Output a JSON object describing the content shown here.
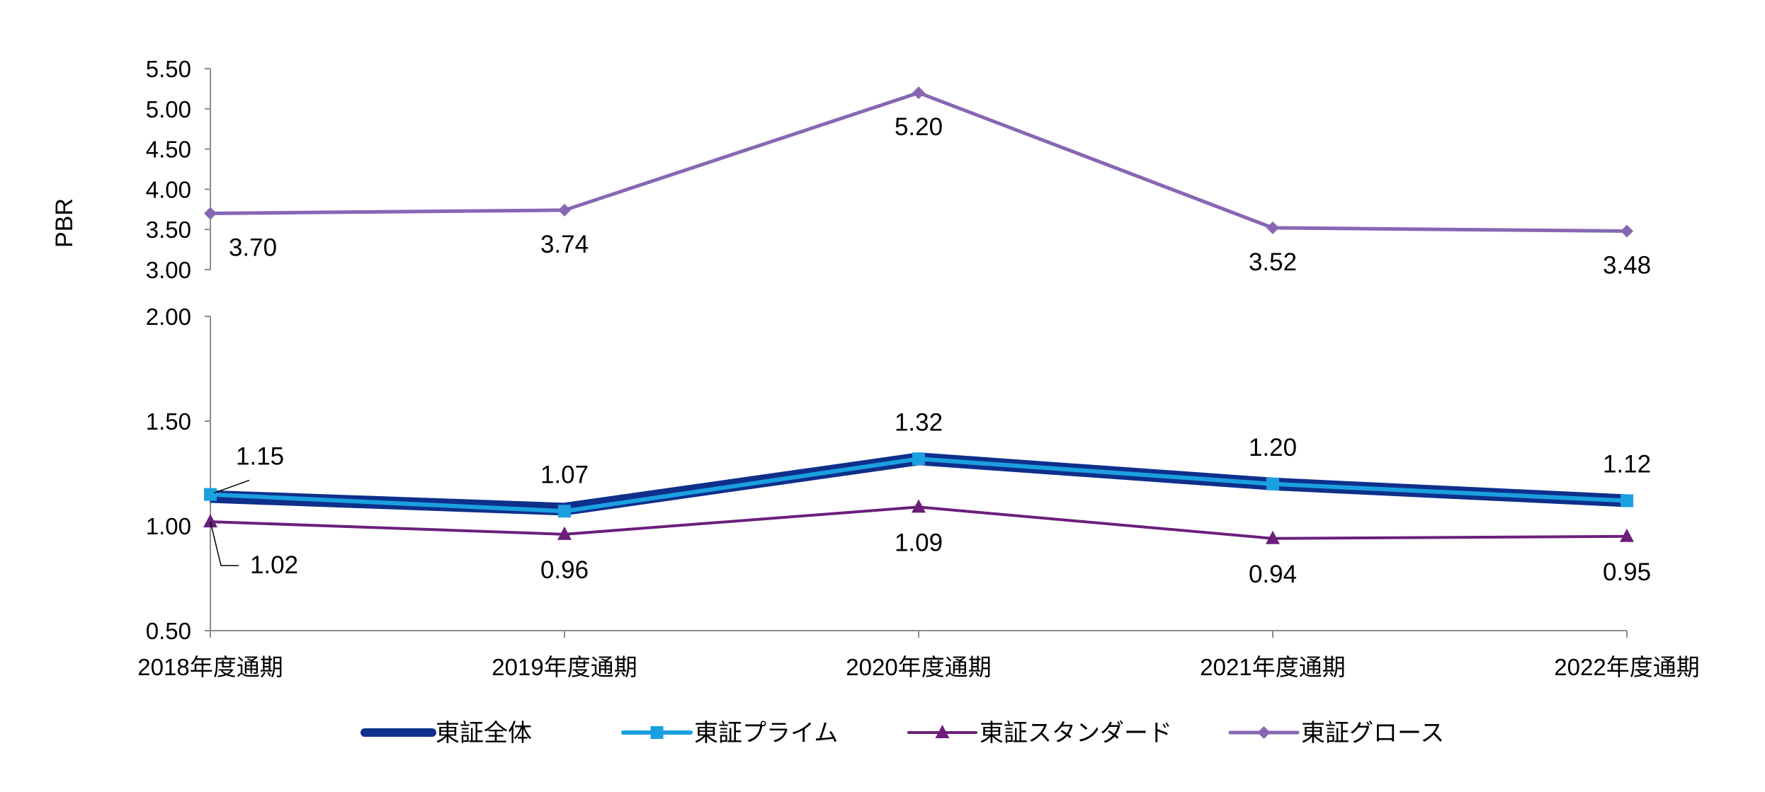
{
  "chart_data": {
    "type": "line",
    "ylabel": "PBR",
    "categories": [
      "2018年度通期",
      "2019年度通期",
      "2020年度通期",
      "2021年度通期",
      "2022年度通期"
    ],
    "axes": {
      "upper": {
        "ylim": [
          3.0,
          5.5
        ],
        "ticks": [
          "3.00",
          "3.50",
          "4.00",
          "4.50",
          "5.00",
          "5.50"
        ]
      },
      "lower": {
        "ylim": [
          0.5,
          2.0
        ],
        "ticks": [
          "0.50",
          "1.00",
          "1.50",
          "2.00"
        ]
      }
    },
    "grid": false,
    "legend_position": "bottom",
    "series": [
      {
        "name": "東証全体",
        "axis": "lower",
        "values": [
          1.14,
          1.08,
          1.32,
          1.2,
          1.12
        ],
        "color": "#0e2f8a",
        "marker": "none"
      },
      {
        "name": "東証プライム",
        "axis": "lower",
        "values": [
          1.15,
          1.07,
          1.32,
          1.2,
          1.12
        ],
        "color": "#1aa0e0",
        "marker": "square"
      },
      {
        "name": "東証スタンダード",
        "axis": "lower",
        "values": [
          1.02,
          0.96,
          1.09,
          0.94,
          0.95
        ],
        "color": "#6b1f7b",
        "marker": "triangle"
      },
      {
        "name": "東証グロース",
        "axis": "upper",
        "values": [
          3.7,
          3.74,
          5.2,
          3.52,
          3.48
        ],
        "color": "#8767b3",
        "marker": "diamond"
      }
    ],
    "data_labels": {
      "lower_top": [
        "1.15",
        "1.07",
        "1.32",
        "1.20",
        "1.12"
      ],
      "lower_bottom": [
        "1.02",
        "0.96",
        "1.09",
        "0.94",
        "0.95"
      ],
      "upper": [
        "3.70",
        "3.74",
        "5.20",
        "3.52",
        "3.48"
      ]
    }
  }
}
